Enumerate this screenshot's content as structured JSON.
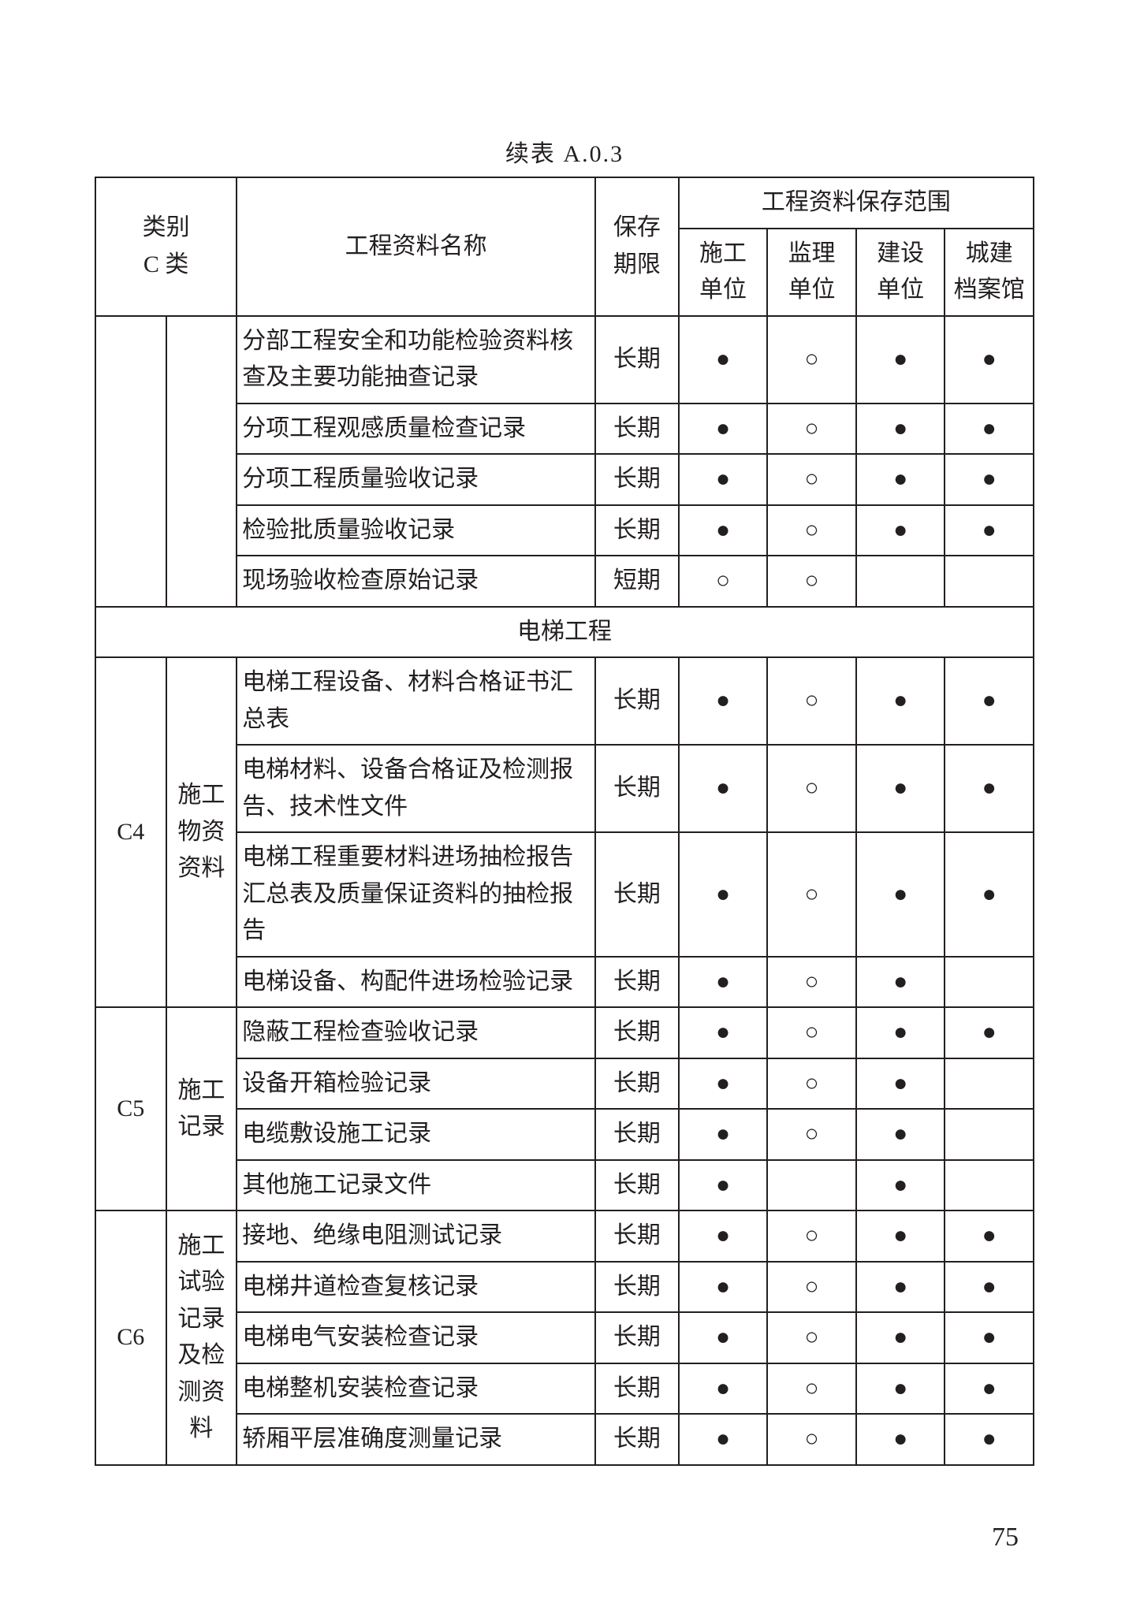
{
  "caption": "续表 A.0.3",
  "header": {
    "cat": "类别\nC 类",
    "name": "工程资料名称",
    "period": "保存\n期限",
    "scope_group": "工程资料保存范围",
    "scope_cols": [
      "施工\n单位",
      "监理\n单位",
      "建设\n单位",
      "城建\n档案馆"
    ]
  },
  "symbols": {
    "filled": "●",
    "hollow": "○",
    "empty": ""
  },
  "section_title": "电梯工程",
  "pre_rows": [
    {
      "name": "分部工程安全和功能检验资料核查及主要功能抽查记录",
      "period": "长期",
      "marks": [
        "filled",
        "hollow",
        "filled",
        "filled"
      ]
    },
    {
      "name": "分项工程观感质量检查记录",
      "period": "长期",
      "marks": [
        "filled",
        "hollow",
        "filled",
        "filled"
      ]
    },
    {
      "name": "分项工程质量验收记录",
      "period": "长期",
      "marks": [
        "filled",
        "hollow",
        "filled",
        "filled"
      ]
    },
    {
      "name": "检验批质量验收记录",
      "period": "长期",
      "marks": [
        "filled",
        "hollow",
        "filled",
        "filled"
      ]
    },
    {
      "name": "现场验收检查原始记录",
      "period": "短期",
      "marks": [
        "hollow",
        "hollow",
        "empty",
        "empty"
      ]
    }
  ],
  "groups": [
    {
      "cat": "C4",
      "sub": "施工\n物资\n资料",
      "rows": [
        {
          "name": "电梯工程设备、材料合格证书汇总表",
          "period": "长期",
          "marks": [
            "filled",
            "hollow",
            "filled",
            "filled"
          ]
        },
        {
          "name": "电梯材料、设备合格证及检测报告、技术性文件",
          "period": "长期",
          "marks": [
            "filled",
            "hollow",
            "filled",
            "filled"
          ]
        },
        {
          "name": "电梯工程重要材料进场抽检报告汇总表及质量保证资料的抽检报告",
          "period": "长期",
          "marks": [
            "filled",
            "hollow",
            "filled",
            "filled"
          ]
        },
        {
          "name": "电梯设备、构配件进场检验记录",
          "period": "长期",
          "marks": [
            "filled",
            "hollow",
            "filled",
            "empty"
          ]
        }
      ]
    },
    {
      "cat": "C5",
      "sub": "施工\n记录",
      "rows": [
        {
          "name": "隐蔽工程检查验收记录",
          "period": "长期",
          "marks": [
            "filled",
            "hollow",
            "filled",
            "filled"
          ]
        },
        {
          "name": "设备开箱检验记录",
          "period": "长期",
          "marks": [
            "filled",
            "hollow",
            "filled",
            "empty"
          ]
        },
        {
          "name": "电缆敷设施工记录",
          "period": "长期",
          "marks": [
            "filled",
            "hollow",
            "filled",
            "empty"
          ]
        },
        {
          "name": "其他施工记录文件",
          "period": "长期",
          "marks": [
            "filled",
            "empty",
            "filled",
            "empty"
          ]
        }
      ]
    },
    {
      "cat": "C6",
      "sub": "施工\n试验\n记录\n及检\n测资\n料",
      "rows": [
        {
          "name": "接地、绝缘电阻测试记录",
          "period": "长期",
          "marks": [
            "filled",
            "hollow",
            "filled",
            "filled"
          ]
        },
        {
          "name": "电梯井道检查复核记录",
          "period": "长期",
          "marks": [
            "filled",
            "hollow",
            "filled",
            "filled"
          ]
        },
        {
          "name": "电梯电气安装检查记录",
          "period": "长期",
          "marks": [
            "filled",
            "hollow",
            "filled",
            "filled"
          ]
        },
        {
          "name": "电梯整机安装检查记录",
          "period": "长期",
          "marks": [
            "filled",
            "hollow",
            "filled",
            "filled"
          ]
        },
        {
          "name": "轿厢平层准确度测量记录",
          "period": "长期",
          "marks": [
            "filled",
            "hollow",
            "filled",
            "filled"
          ]
        }
      ]
    }
  ],
  "page_number": "75",
  "colors": {
    "text": "#231f20",
    "border": "#231f20",
    "background": "#ffffff"
  }
}
